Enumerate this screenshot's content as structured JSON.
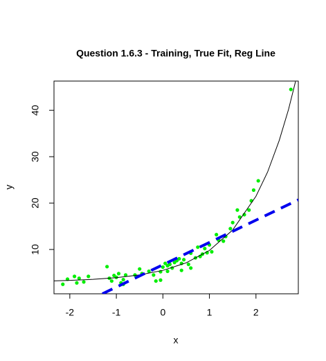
{
  "chart_data": {
    "type": "scatter",
    "title": "Question 1.6.3 - Training, True Fit, Reg Line",
    "x_label": "x",
    "y_label": "y",
    "xlim": [
      -2.34,
      2.91
    ],
    "ylim": [
      0.45,
      46.3
    ],
    "xticks": [
      -2,
      -1,
      0,
      1,
      2
    ],
    "yticks": [
      10,
      20,
      30,
      40
    ],
    "series": [
      {
        "type": "scatter",
        "color": "#00ee00",
        "x": [
          -2.15,
          -2.05,
          -1.9,
          -1.85,
          -1.8,
          -1.7,
          -1.6,
          -1.2,
          -1.15,
          -1.1,
          -1.05,
          -1.0,
          -0.95,
          -0.9,
          -0.85,
          -0.85,
          -0.8,
          -0.6,
          -0.5,
          -0.45,
          -0.3,
          -0.2,
          -0.15,
          -0.05,
          -0.05,
          0.0,
          0.05,
          0.1,
          0.1,
          0.15,
          0.2,
          0.25,
          0.3,
          0.35,
          0.4,
          0.4,
          0.45,
          0.55,
          0.6,
          0.6,
          0.7,
          0.75,
          0.8,
          0.85,
          0.9,
          0.95,
          1.0,
          1.05,
          1.15,
          1.2,
          1.3,
          1.35,
          1.45,
          1.5,
          1.6,
          1.65,
          1.75,
          1.85,
          1.9,
          1.95,
          2.05,
          2.75
        ],
        "values": [
          2.5,
          3.6,
          4.2,
          2.8,
          3.8,
          3.0,
          4.2,
          6.3,
          3.8,
          3.2,
          4.4,
          4.0,
          4.8,
          2.8,
          3.5,
          2.5,
          4.5,
          4.5,
          5.8,
          4.8,
          5.3,
          4.5,
          3.2,
          3.4,
          5.2,
          6.2,
          7.0,
          5.3,
          6.5,
          6.8,
          6.0,
          7.2,
          7.6,
          8.0,
          5.5,
          7.0,
          7.8,
          6.8,
          9.2,
          6.0,
          8.2,
          10.5,
          8.5,
          9.0,
          10.2,
          9.3,
          11.0,
          9.5,
          13.2,
          12.0,
          11.8,
          12.8,
          14.5,
          15.8,
          18.5,
          17.0,
          17.5,
          18.5,
          20.5,
          22.8,
          24.8,
          44.5
        ]
      },
      {
        "type": "line",
        "color": "#000000",
        "line_width": 1,
        "dashed": false,
        "x": [
          -2.34,
          -2,
          -1.5,
          -1,
          -0.5,
          0,
          0.5,
          1,
          1.5,
          2,
          2.25,
          2.5,
          2.7,
          2.85
        ],
        "values": [
          3.24,
          3.34,
          3.56,
          3.92,
          4.52,
          5.5,
          7.12,
          9.8,
          14.2,
          21.47,
          26.7,
          33.5,
          40.2,
          46.2
        ]
      },
      {
        "type": "line",
        "color": "#0000ee",
        "line_width": 4,
        "dashed": true,
        "x": [
          -1.3,
          2.91
        ],
        "values": [
          0.45,
          20.7
        ]
      }
    ]
  }
}
